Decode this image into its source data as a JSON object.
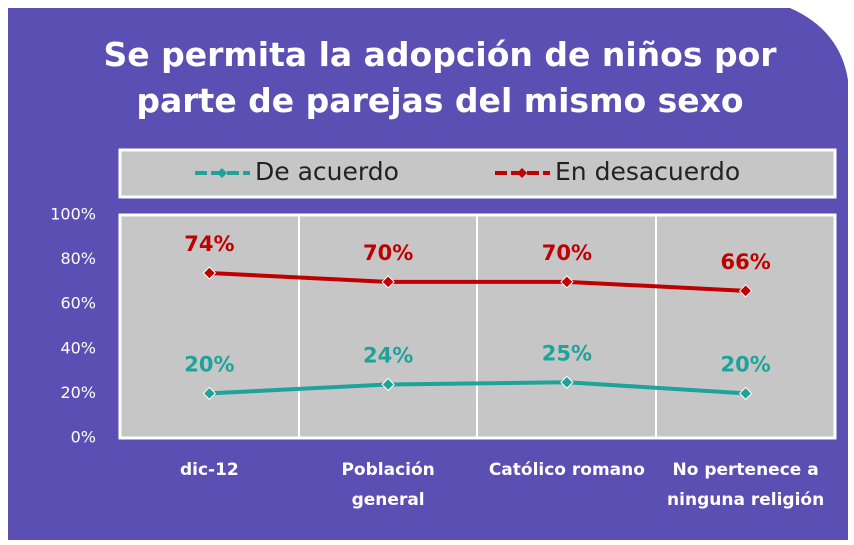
{
  "chart_data": {
    "type": "line",
    "title": "Se permita la adopción de niños por parte de parejas del mismo sexo",
    "categories": [
      "dic-12",
      "Población general",
      "Católico romano",
      "No pertenece a ninguna religión"
    ],
    "series": [
      {
        "name": "De acuerdo",
        "color": "#1ea39a",
        "values": [
          20,
          24,
          25,
          20
        ],
        "value_labels": [
          "20%",
          "24%",
          "25%",
          "20%"
        ]
      },
      {
        "name": "En desacuerdo",
        "color": "#c00000",
        "values": [
          74,
          70,
          70,
          66
        ],
        "value_labels": [
          "74%",
          "70%",
          "70%",
          "66%"
        ]
      }
    ],
    "ylim": [
      0,
      100
    ],
    "yticks": [
      {
        "value": 0,
        "label": "0%"
      },
      {
        "value": 20,
        "label": "20%"
      },
      {
        "value": 40,
        "label": "40%"
      },
      {
        "value": 60,
        "label": "60%"
      },
      {
        "value": 80,
        "label": "80%"
      },
      {
        "value": 100,
        "label": "100%"
      }
    ],
    "legend": "top"
  }
}
